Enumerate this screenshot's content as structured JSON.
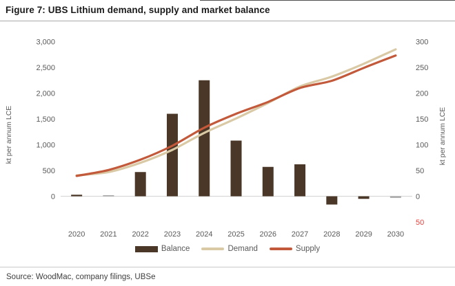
{
  "figure": {
    "title": "Figure 7: UBS Lithium demand, supply and market balance",
    "source": "Source: WoodMac, company filings, UBSe"
  },
  "colors": {
    "balance_bar": "#4A3727",
    "balance_bar_muted": "#A3A3A3",
    "demand_line": "#D9C9A5",
    "supply_line": "#C2593A",
    "axis_text": "#595959",
    "negative_tick": "#E8403C",
    "zero_gridline": "#d8d8d8"
  },
  "chart_data": {
    "type": "combo",
    "categories": [
      "2020",
      "2021",
      "2022",
      "2023",
      "2024",
      "2025",
      "2026",
      "2027",
      "2028",
      "2029",
      "2030"
    ],
    "series": [
      {
        "name": "Balance",
        "type": "bar",
        "axis": "right",
        "color": "#4A3727",
        "values": [
          3,
          2,
          47,
          160,
          225,
          108,
          57,
          62,
          -16,
          -5,
          -3
        ],
        "bar_colors": [
          "#4A3727",
          "#A3A3A3",
          "#4A3727",
          "#4A3727",
          "#4A3727",
          "#4A3727",
          "#4A3727",
          "#4A3727",
          "#4A3727",
          "#4A3727",
          "#A3A3A3"
        ]
      },
      {
        "name": "Demand",
        "type": "line",
        "axis": "left",
        "color": "#D9C9A5",
        "values": [
          405,
          470,
          650,
          900,
          1230,
          1510,
          1810,
          2130,
          2320,
          2570,
          2850
        ]
      },
      {
        "name": "Supply",
        "type": "line",
        "axis": "left",
        "color": "#C2593A",
        "values": [
          395,
          510,
          710,
          980,
          1330,
          1600,
          1830,
          2100,
          2240,
          2490,
          2730
        ]
      }
    ],
    "left_axis": {
      "label": "kt per annum LCE",
      "ticks": [
        0,
        500,
        1000,
        1500,
        2000,
        2500,
        3000
      ],
      "range": [
        -500,
        3000
      ]
    },
    "right_axis": {
      "label": "kt per annum LCE",
      "ticks": [
        -50,
        0,
        50,
        100,
        150,
        200,
        250,
        300
      ],
      "range": [
        -50,
        300
      ],
      "negative_labels_shown_as_absolute_in_red": true
    },
    "grid": "zero-line-only",
    "legend_position": "bottom-center",
    "title": "Figure 7: UBS Lithium demand, supply and market balance"
  }
}
